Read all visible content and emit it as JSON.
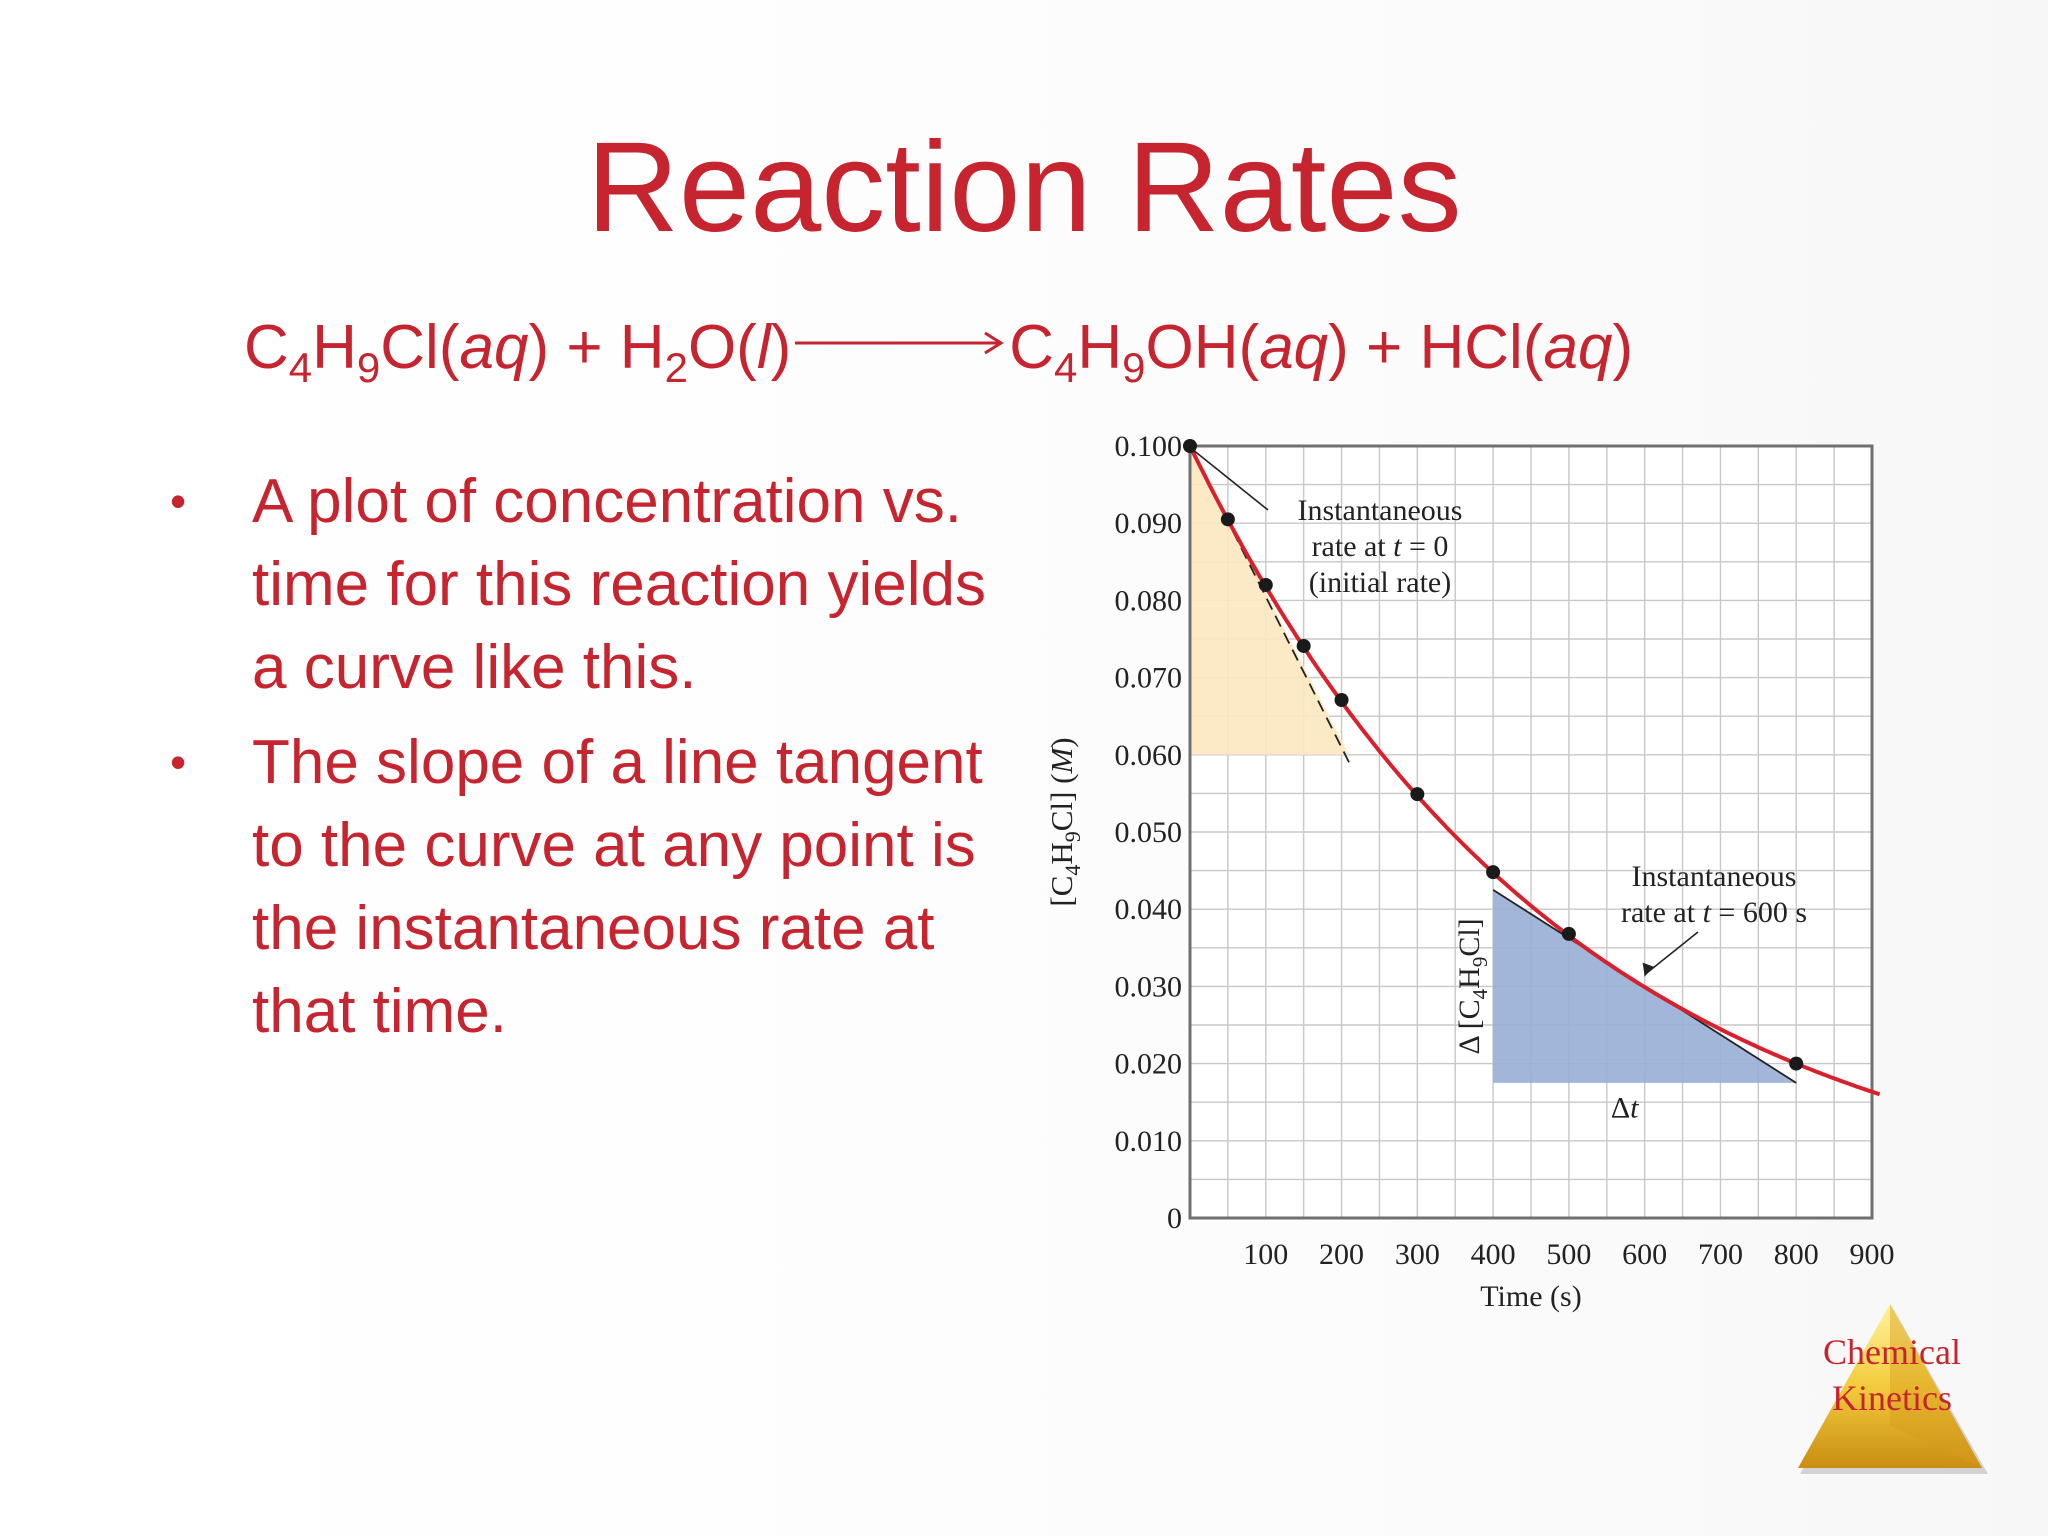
{
  "slide": {
    "title": "Reaction Rates",
    "equation": {
      "reactant1_base": "C",
      "reactant1_sub1": "4",
      "reactant1_mid": "H",
      "reactant1_sub2": "9",
      "reactant1_end": "Cl(",
      "reactant1_state": "aq",
      "reactant1_close": ")",
      "plus1": "+",
      "reactant2_base": "H",
      "reactant2_sub": "2",
      "reactant2_end": "O(",
      "reactant2_state": "l",
      "reactant2_close": ")",
      "product1_base": "C",
      "product1_sub1": "4",
      "product1_mid": "H",
      "product1_sub2": "9",
      "product1_end": "OH(",
      "product1_state": "aq",
      "product1_close": ")",
      "plus2": "+",
      "product2_base": "HCl(",
      "product2_state": "aq",
      "product2_close": ")"
    },
    "bullets": [
      {
        "marker": "•",
        "text": "A plot of concentration vs. time for this reaction yields a curve like this."
      },
      {
        "marker": "•",
        "text": "The slope of a line tangent to the curve at any point is the instantaneous rate at that time."
      }
    ],
    "logo": {
      "line1": "Chemical",
      "line2": "Kinetics"
    }
  },
  "chart_data": {
    "type": "line",
    "xlabel": "Time (s)",
    "ylabel_prefix": "[C",
    "ylabel_sub1": "4",
    "ylabel_mid": "H",
    "ylabel_sub2": "9",
    "ylabel_suffix": "Cl] (",
    "ylabel_unit": "M",
    "ylabel_close": ")",
    "xlim": [
      0,
      900
    ],
    "ylim": [
      0,
      0.1
    ],
    "x_ticks": [
      "100",
      "200",
      "300",
      "400",
      "500",
      "600",
      "700",
      "800",
      "900"
    ],
    "y_ticks": [
      "0",
      "0.010",
      "0.020",
      "0.030",
      "0.040",
      "0.050",
      "0.060",
      "0.070",
      "0.080",
      "0.090",
      "0.100"
    ],
    "grid": true,
    "series": [
      {
        "x": [
          0,
          50,
          100,
          150,
          200,
          300,
          400,
          500,
          800
        ],
        "y": [
          0.1,
          0.0905,
          0.082,
          0.0741,
          0.0671,
          0.0549,
          0.0448,
          0.0368,
          0.02
        ]
      }
    ],
    "curve_color": "#d9212e",
    "point_color": "#1a1a1a",
    "tangent_initial": {
      "x": [
        0,
        210
      ],
      "y": [
        0.1,
        0.059
      ],
      "style": "dashed",
      "triangle_color": "#fce8c0",
      "triangle": {
        "x": [
          0,
          210
        ],
        "y": [
          0.06,
          0.1
        ]
      }
    },
    "tangent_600": {
      "x": [
        400,
        800
      ],
      "y": [
        0.0425,
        0.0175
      ],
      "style": "solid",
      "triangle_color": "#98aed6",
      "triangle": {
        "x": [
          400,
          800
        ],
        "y": [
          0.0175,
          0.0425
        ]
      }
    },
    "annotations": {
      "initial": {
        "line1": "Instantaneous",
        "line2_prefix": "rate at ",
        "line2_var": "t",
        "line2_suffix": " = 0",
        "line3": "(initial rate)"
      },
      "at600": {
        "line1": "Instantaneous",
        "line2_prefix": "rate at ",
        "line2_var": "t",
        "line2_suffix": " = 600 s"
      },
      "delta_t_symbol": "Δ",
      "delta_t_var": "t",
      "delta_c_prefix": "Δ [C",
      "delta_c_sub1": "4",
      "delta_c_mid": "H",
      "delta_c_sub2": "9",
      "delta_c_suffix": "Cl]"
    }
  }
}
